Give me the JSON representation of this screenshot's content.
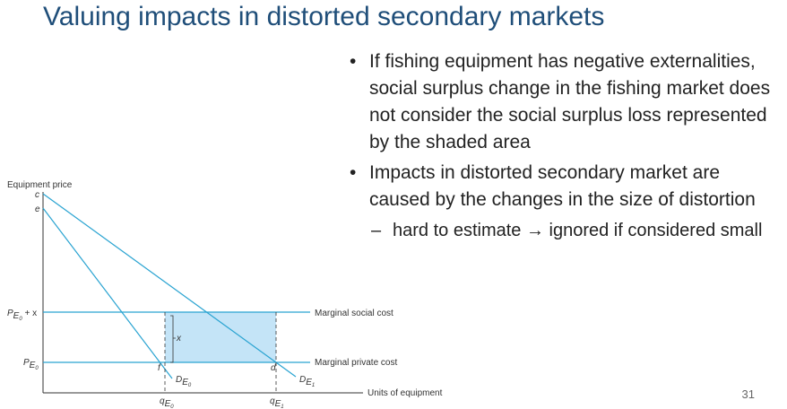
{
  "slide": {
    "title": "Valuing impacts in distorted secondary markets",
    "page_number": "31"
  },
  "bullets": [
    {
      "text": "If fishing equipment has negative externalities, social surplus change in the fishing market does not consider the social surplus loss represented by the shaded area"
    },
    {
      "text": "Impacts in distorted secondary market are caused by the changes in the size of distortion"
    }
  ],
  "sub_bullets": [
    {
      "text": "hard to estimate → ignored if considered small"
    }
  ],
  "diagram": {
    "y_axis_label": "Equipment price",
    "x_axis_label": "Units of equipment",
    "point_c": "c",
    "point_e": "e",
    "point_f": "f",
    "point_d": "d",
    "distortion_x": "x",
    "label_marginal_social_cost": "Marginal social cost",
    "label_marginal_private_cost": "Marginal private cost",
    "price_high": {
      "base": "P",
      "sub": "E",
      "subsub": "0",
      "suffix": " + x"
    },
    "price_low": {
      "base": "P",
      "sub": "E",
      "subsub": "0"
    },
    "demand_0": {
      "base": "D",
      "sub": "E",
      "subsub": "0"
    },
    "demand_1": {
      "base": "D",
      "sub": "E",
      "subsub": "1"
    },
    "quantity_0": {
      "base": "q",
      "sub": "E",
      "subsub": "0"
    },
    "quantity_1": {
      "base": "q",
      "sub": "E",
      "subsub": "1"
    },
    "colors": {
      "curve": "#29a3d1",
      "shaded_area": "#c4e4f7",
      "axis": "#333333"
    }
  }
}
